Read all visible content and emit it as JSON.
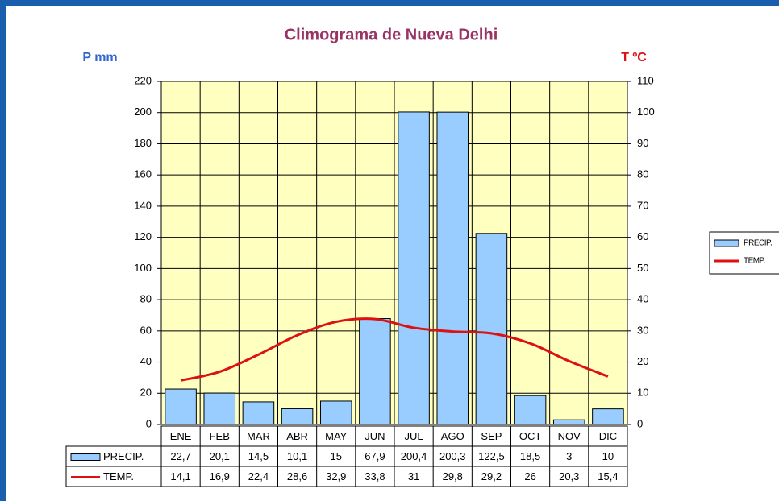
{
  "chart_data": {
    "type": "bar_line",
    "title": "Climograma de Nueva Delhi",
    "y_label": "P mm",
    "y2_label": "T ºC",
    "categories": [
      "ENE",
      "FEB",
      "MAR",
      "ABR",
      "MAY",
      "JUN",
      "JUL",
      "AGO",
      "SEP",
      "OCT",
      "NOV",
      "DIC"
    ],
    "series": [
      {
        "name": "PRECIP.",
        "type": "bar",
        "axis": "y",
        "color": "#99ccff",
        "values": [
          22.7,
          20.1,
          14.5,
          10.1,
          15,
          67.9,
          200.4,
          200.3,
          122.5,
          18.5,
          3,
          10
        ],
        "value_labels": [
          "22,7",
          "20,1",
          "14,5",
          "10,1",
          "15",
          "67,9",
          "200,4",
          "200,3",
          "122,5",
          "18,5",
          "3",
          "10"
        ]
      },
      {
        "name": "TEMP.",
        "type": "line",
        "axis": "y2",
        "color": "#dd1111",
        "values": [
          14.1,
          16.9,
          22.4,
          28.6,
          32.9,
          33.8,
          31,
          29.8,
          29.2,
          26,
          20.3,
          15.4
        ],
        "value_labels": [
          "14,1",
          "16,9",
          "22,4",
          "28,6",
          "32,9",
          "33,8",
          "31",
          "29,8",
          "29,2",
          "26",
          "20,3",
          "15,4"
        ]
      }
    ],
    "ylim": [
      0,
      220
    ],
    "yticks": [
      0,
      20,
      40,
      60,
      80,
      100,
      120,
      140,
      160,
      180,
      200,
      220
    ],
    "y2lim": [
      0,
      110
    ],
    "y2ticks": [
      0,
      10,
      20,
      30,
      40,
      50,
      60,
      70,
      80,
      90,
      100,
      110
    ],
    "grid": true,
    "legend": "right"
  }
}
